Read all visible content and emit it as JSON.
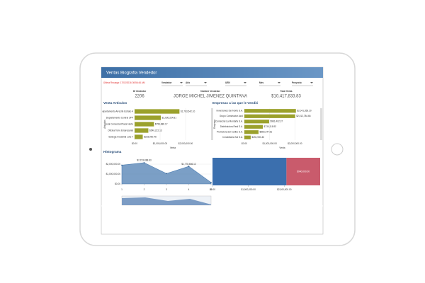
{
  "header": {
    "title": "Ventas Biografía Vendedor",
    "last_refresh": "Última Recarga: 17/02/2016 08:56:46 AM"
  },
  "filters": [
    "Vendedor",
    "Año",
    "UEN",
    "Mes",
    "Proyecto"
  ],
  "kpis": [
    {
      "label": "ID Vendedor",
      "value": "2206"
    },
    {
      "label": "Nombre Vendedor",
      "value": "JORGE MICHEL JIMENEZ QUINTANA"
    },
    {
      "label": "Total Venta",
      "value": "$10,417,833.83"
    }
  ],
  "chart_data": [
    {
      "type": "hbar",
      "title": "Venta Artículos",
      "y_label": "Artículos",
      "x_label": "Venta",
      "color": "#9ba12c",
      "categories": [
        "Apartamento Arrecife Estrato 4",
        "Departamento Central 3PP",
        "Local Comercial Plaza Norte",
        "Oficina Torre Empresarial",
        "Bodega Industrial Lote 7"
      ],
      "values": [
        1760000,
        1030000,
        760000,
        540000,
        320000
      ],
      "value_labels": [
        "$1,763,542.10",
        "$1,030,224.81",
        "$756,880.17",
        "$540,222.13",
        "$318,990.45"
      ],
      "xlim": [
        0,
        3000000
      ],
      "xticks": [
        {
          "value": 0,
          "label": "$0.00"
        },
        {
          "value": 1000000,
          "label": "$1,000,000.00"
        },
        {
          "value": 2000000,
          "label": "$2,000,000.00"
        }
      ]
    },
    {
      "type": "hbar",
      "title": "Empresas a las que le Vendió",
      "y_label": "Empresa",
      "x_label": "Venta",
      "color": "#9ba12c",
      "categories": [
        "Inversiones Del Norte S.A.",
        "Grupo Constructor Azul",
        "Comercial La Montaña S.A.",
        "Distribuidora Real S.A.",
        "Promotora del Caribe S.A.",
        "Inmobiliaria Sol S.A."
      ],
      "values": [
        2040000,
        2010000,
        980000,
        730000,
        560000,
        250000
      ],
      "value_labels": [
        "$2,041,356.20",
        "$2,012,784.66",
        "$981,402.37",
        "$730,118.92",
        "$560,247.51",
        "$251,933.40"
      ],
      "xlim": [
        0,
        3000000
      ],
      "xticks": [
        {
          "value": 0,
          "label": "$0.00"
        },
        {
          "value": 1000000,
          "label": "$1,000,000.00"
        },
        {
          "value": 2000000,
          "label": "$2,000,000.00"
        }
      ]
    },
    {
      "type": "area",
      "title": "Histograma",
      "color": "#4f7fb3",
      "x": [
        1,
        2,
        3,
        4,
        5
      ],
      "values": [
        1900000,
        2150000,
        1050000,
        1780000,
        150000
      ],
      "value_labels": [
        null,
        "$2,153,888.83",
        null,
        "$1,778,666.12",
        null
      ],
      "xlim": [
        1,
        5
      ],
      "xticks": [
        1,
        2,
        3,
        4,
        5
      ],
      "ylim": [
        0,
        3000000
      ],
      "yticks": [
        {
          "value": 0,
          "label": "$0.00"
        },
        {
          "value": 1000000,
          "label": "$1,000,000.00"
        },
        {
          "value": 2000000,
          "label": "$2,000,000.00"
        }
      ]
    },
    {
      "type": "stacked_hbar",
      "series": [
        {
          "color": "#3b6fae",
          "values": [
            2060000
          ],
          "value_labels": [
            null
          ]
        },
        {
          "color": "#c95b6c",
          "values": [
            940000
          ],
          "value_labels": [
            "$940,000.00"
          ]
        }
      ],
      "xlim": [
        0,
        3000000
      ],
      "xticks": [
        {
          "value": 0,
          "label": "$0.00"
        },
        {
          "value": 1000000,
          "label": "$1,000,000.00"
        },
        {
          "value": 2000000,
          "label": "$2,000,000.00"
        }
      ]
    }
  ]
}
